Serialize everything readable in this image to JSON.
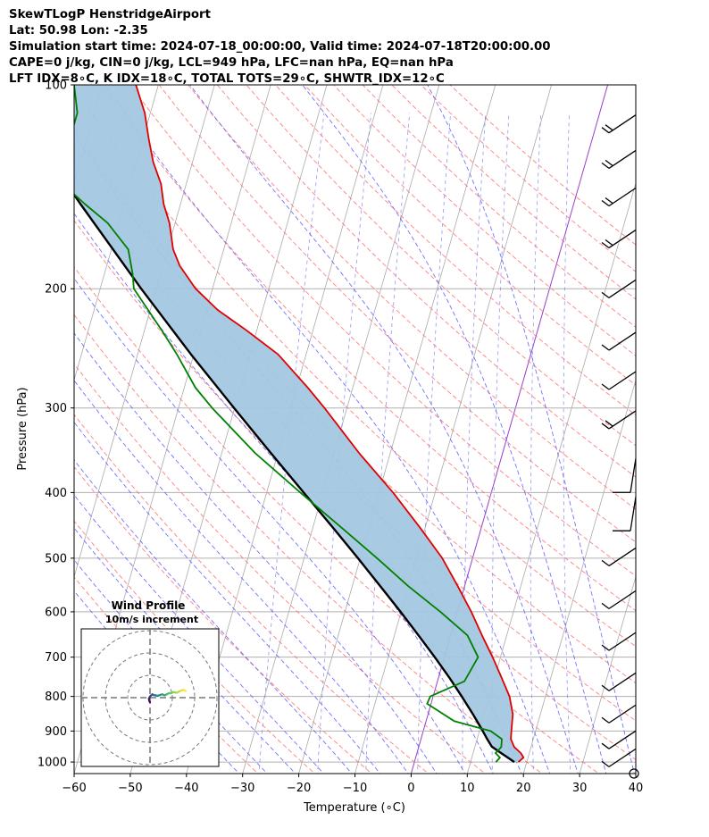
{
  "header": {
    "line1": "SkewTLogP HenstridgeAirport",
    "line2": "Lat: 50.98   Lon: -2.35",
    "line3": "Simulation start time: 2024-07-18_00:00:00, Valid time: 2024-07-18T20:00:00.00",
    "line4": "CAPE=0 j/kg, CIN=0 j/kg, LCL=949 hPa, LFC=nan hPa, EQ=nan hPa",
    "line5": "LFT IDX=8∘C, K IDX=18∘C, TOTAL TOTS=29∘C, SHWTR_IDX=12∘C"
  },
  "colors": {
    "temperature": "#e00000",
    "dewpoint": "#008000",
    "parcel": "#000000",
    "shading": "#a3c7e0",
    "dry_adiabat": "#ff6a6a",
    "moist_adiabat": "#5a5aff",
    "mixing_ratio": "#6a6aef",
    "isotherm": "#aaaaaa",
    "zero_isotherm": "#9a3ec8"
  },
  "chart_data": {
    "type": "line",
    "chart_kind": "skew-T log-P",
    "xlabel": "Temperature (∘C)",
    "ylabel": "Pressure (hPa)",
    "xlim": [
      -60,
      40
    ],
    "ylim": [
      1040,
      100
    ],
    "y_scale": "log",
    "x_ticks": [
      -60,
      -50,
      -40,
      -30,
      -20,
      -10,
      0,
      10,
      20,
      30,
      40
    ],
    "x_tick_labels": [
      "−60",
      "−50",
      "−40",
      "−30",
      "−20",
      "−10",
      "0",
      "10",
      "20",
      "30",
      "40"
    ],
    "y_ticks": [
      100,
      200,
      300,
      400,
      500,
      600,
      700,
      800,
      900,
      1000
    ],
    "y_tick_labels": [
      "100",
      "200",
      "300",
      "400",
      "500",
      "600",
      "700",
      "800",
      "900",
      "1000"
    ],
    "grid": true,
    "series": [
      {
        "id": "temperature",
        "pressure": [
          1000,
          985,
          970,
          950,
          925,
          900,
          850,
          800,
          750,
          700,
          650,
          600,
          550,
          500,
          450,
          400,
          350,
          300,
          280,
          250,
          230,
          215,
          200,
          185,
          175,
          160,
          150,
          140,
          130,
          120,
          110,
          100
        ],
        "values": [
          18.5,
          19.2,
          18.5,
          17.0,
          16.0,
          15.7,
          15.1,
          13.6,
          11.2,
          8.6,
          5.6,
          2.5,
          -1.2,
          -5.4,
          -11.0,
          -17.5,
          -25.5,
          -34.0,
          -38.0,
          -45.0,
          -52.0,
          -58.0,
          -63.0,
          -67.0,
          -69.0,
          -71.0,
          -73.0,
          -74.5,
          -77.0,
          -79.0,
          -81.0,
          -84.0
        ]
      },
      {
        "id": "dewpoint",
        "pressure": [
          1000,
          985,
          970,
          950,
          925,
          900,
          870,
          820,
          800,
          760,
          700,
          650,
          600,
          550,
          500,
          450,
          400,
          350,
          300,
          280,
          250,
          230,
          200,
          190,
          175,
          160,
          150,
          140,
          130,
          120,
          110,
          100
        ],
        "values": [
          14.5,
          15.0,
          14.0,
          14.7,
          14.4,
          12.0,
          5.0,
          -0.7,
          -0.5,
          4.8,
          6.0,
          3.0,
          -3.0,
          -10.0,
          -17.0,
          -25.0,
          -34.0,
          -44.0,
          -54.0,
          -58.0,
          -63.0,
          -67.0,
          -74.0,
          -75.0,
          -77.0,
          -82.0,
          -87.0,
          -92.0,
          -94.0,
          -93.0,
          -93.0,
          -95.0
        ]
      },
      {
        "id": "parcel",
        "pressure": [
          1000,
          985,
          970,
          949,
          925,
          900,
          850,
          800,
          750,
          700,
          650,
          600,
          550,
          500,
          450,
          400,
          350,
          300,
          250,
          200,
          150,
          100
        ],
        "values": [
          17.8,
          16.4,
          15.0,
          13.0,
          11.8,
          10.6,
          8.0,
          5.1,
          1.9,
          -1.7,
          -5.7,
          -10.1,
          -15.0,
          -20.4,
          -26.5,
          -33.4,
          -41.2,
          -50.1,
          -60.5,
          -72.7,
          -87.8,
          -108.5
        ]
      }
    ],
    "inset": {
      "title_line1": "Wind Profile",
      "title_line2": "10m/s increment",
      "type": "hodograph",
      "u": [
        0.0,
        -0.3,
        -0.5,
        0.0,
        0.5,
        1.0,
        1.5,
        2.5,
        3.5,
        4.5,
        5.5,
        6.5,
        7.5,
        8.5,
        9.5,
        10.5,
        12.0,
        13.5,
        15.0,
        16.0
      ],
      "v": [
        -2.0,
        -1.5,
        -0.5,
        0.5,
        1.0,
        1.5,
        1.2,
        1.0,
        0.8,
        1.2,
        1.5,
        1.0,
        1.5,
        2.0,
        2.0,
        2.5,
        2.2,
        3.0,
        3.5,
        3.0
      ],
      "rings_mps": [
        10,
        20,
        30
      ]
    },
    "wind_barbs": [
      {
        "pressure": 1040,
        "style": "calm"
      },
      {
        "pressure": 1010,
        "style": "half"
      },
      {
        "pressure": 950,
        "style": "half"
      },
      {
        "pressure": 870,
        "style": "half"
      },
      {
        "pressure": 780,
        "style": "half"
      },
      {
        "pressure": 680,
        "style": "half"
      },
      {
        "pressure": 590,
        "style": "half"
      },
      {
        "pressure": 510,
        "style": "half"
      },
      {
        "pressure": 450,
        "style": "full"
      },
      {
        "pressure": 395,
        "style": "full"
      },
      {
        "pressure": 320,
        "style": "two-half"
      },
      {
        "pressure": 280,
        "style": "half"
      },
      {
        "pressure": 245,
        "style": "half"
      },
      {
        "pressure": 205,
        "style": "half"
      },
      {
        "pressure": 173,
        "style": "two-half"
      },
      {
        "pressure": 150,
        "style": "two-half"
      },
      {
        "pressure": 132,
        "style": "two-half"
      },
      {
        "pressure": 117,
        "style": "two-half"
      }
    ]
  }
}
